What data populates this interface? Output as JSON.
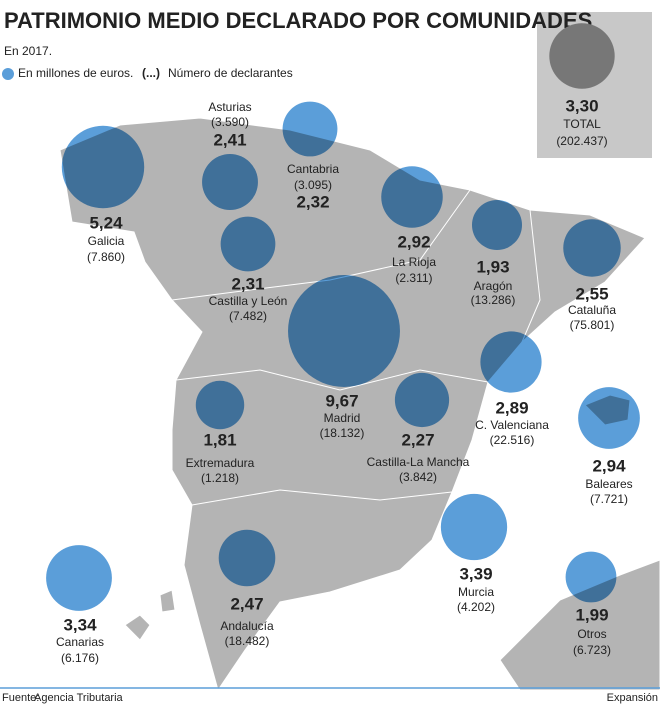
{
  "chart_data": {
    "type": "bubble-map",
    "title": "PATRIMONIO MEDIO DECLARADO POR COMUNIDADES",
    "subtitle": "En 2017.",
    "legend": {
      "bubble": "En millones de euros.",
      "symbol": "(...)",
      "symbol_text": "Número de declarantes"
    },
    "color": "#5b9ed9",
    "total": {
      "name": "TOTAL",
      "value": 3.3,
      "value_label": "3,30",
      "declarants": "(202.437)",
      "color": "#777777"
    },
    "regions": [
      {
        "name": "Galicia",
        "value": 5.24,
        "value_label": "5,24",
        "declarants": "(7.860)"
      },
      {
        "name": "Asturias",
        "value": 2.41,
        "value_label": "2,41",
        "declarants": "(3.590)"
      },
      {
        "name": "Cantabria",
        "value": 2.32,
        "value_label": "2,32",
        "declarants": "(3.095)"
      },
      {
        "name": "La Rioja",
        "value": 2.92,
        "value_label": "2,92",
        "declarants": "(2.311)"
      },
      {
        "name": "Aragón",
        "value": 1.93,
        "value_label": "1,93",
        "declarants": "(13.286)"
      },
      {
        "name": "Cataluña",
        "value": 2.55,
        "value_label": "2,55",
        "declarants": "(75.801)"
      },
      {
        "name": "Castilla y León",
        "value": 2.31,
        "value_label": "2,31",
        "declarants": "(7.482)"
      },
      {
        "name": "Madrid",
        "value": 9.67,
        "value_label": "9,67",
        "declarants": "(18.132)"
      },
      {
        "name": "C. Valenciana",
        "value": 2.89,
        "value_label": "2,89",
        "declarants": "(22.516)"
      },
      {
        "name": "Baleares",
        "value": 2.94,
        "value_label": "2,94",
        "declarants": "(7.721)"
      },
      {
        "name": "Extremadura",
        "value": 1.81,
        "value_label": "1,81",
        "declarants": "(1.218)"
      },
      {
        "name": "Castilla-La Mancha",
        "value": 2.27,
        "value_label": "2,27",
        "declarants": "(3.842)"
      },
      {
        "name": "Murcia",
        "value": 3.39,
        "value_label": "3,39",
        "declarants": "(4.202)"
      },
      {
        "name": "Andalucía",
        "value": 2.47,
        "value_label": "2,47",
        "declarants": "(18.482)"
      },
      {
        "name": "Canarias",
        "value": 3.34,
        "value_label": "3,34",
        "declarants": "(6.176)"
      },
      {
        "name": "Otros",
        "value": 1.99,
        "value_label": "1,99",
        "declarants": "(6.723)"
      }
    ],
    "source_label": "Fuente:",
    "source": "Agencia Tributaria",
    "credit": "Expansión"
  }
}
